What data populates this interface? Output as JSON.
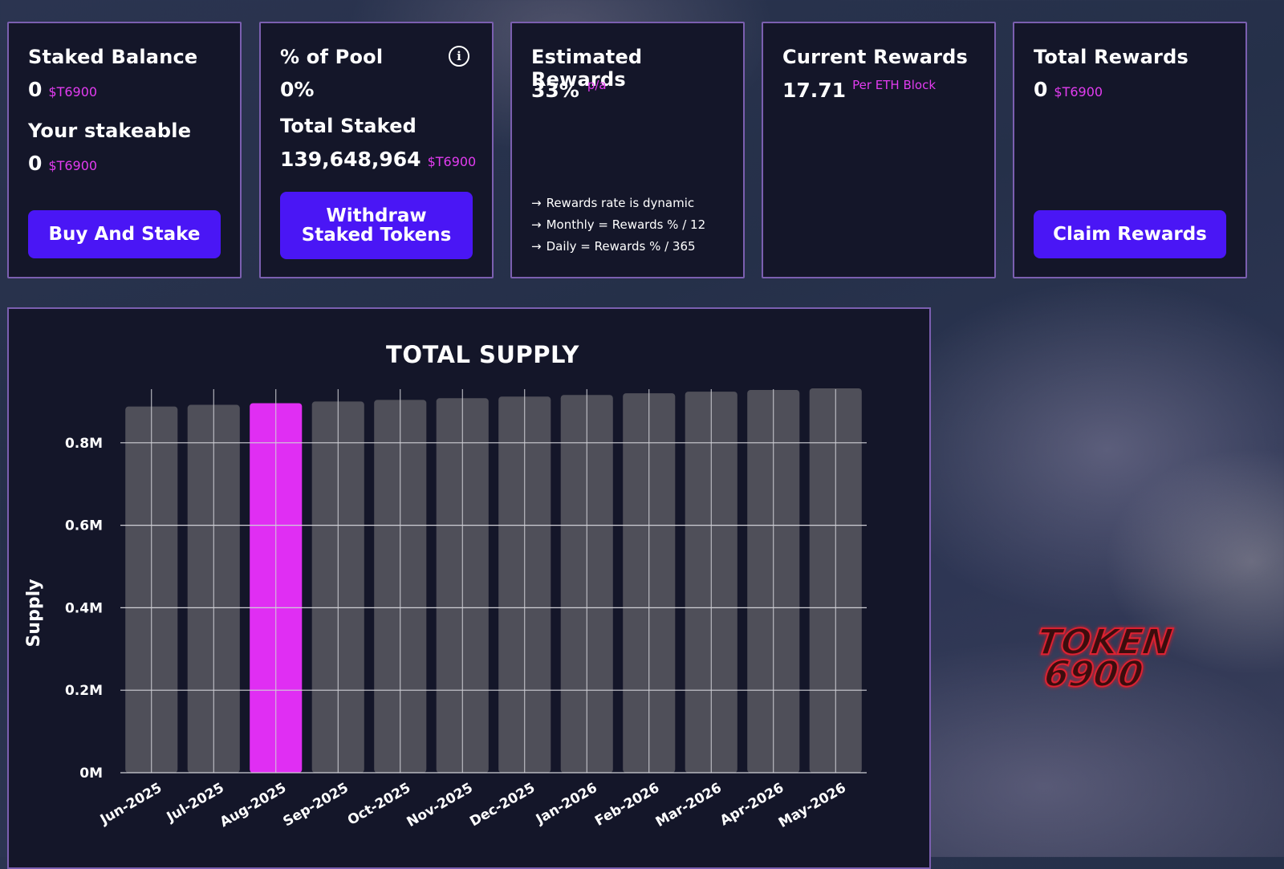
{
  "cards": {
    "staked_balance": {
      "title": "Staked Balance",
      "value": "0",
      "unit": "$T6900",
      "stakeable_label": "Your stakeable",
      "stakeable_value": "0",
      "stakeable_unit": "$T6900",
      "button": "Buy And Stake"
    },
    "pool": {
      "title": "% of Pool",
      "value": "0%",
      "total_label": "Total Staked",
      "total_value": "139,648,964",
      "total_unit": "$T6900",
      "button_line1": "Withdraw",
      "button_line2": "Staked Tokens",
      "info_icon": "info-icon"
    },
    "estimated": {
      "title": "Estimated Rewards",
      "value": "33%",
      "unit": "p/a",
      "notes": [
        "Rewards rate is dynamic",
        "Monthly = Rewards % / 12",
        "Daily = Rewards % / 365"
      ]
    },
    "current": {
      "title": "Current Rewards",
      "value": "17.71",
      "unit": "Per ETH Block"
    },
    "total": {
      "title": "Total Rewards",
      "value": "0",
      "unit": "$T6900",
      "button": "Claim Rewards"
    }
  },
  "logo": {
    "line1": "TOKEN",
    "line2": "6900"
  },
  "colors": {
    "accent": "#e23cf0",
    "button": "#4a16f5",
    "panel": "#141629",
    "border": "#7b5fb0",
    "bar": "#4f4f59",
    "highlight_bar": "#e02ef3",
    "logo": "#d8232f"
  },
  "chart_data": {
    "type": "bar",
    "title": "TOTAL SUPPLY",
    "xlabel": "",
    "ylabel": "Supply",
    "categories": [
      "Jun-2025",
      "Jul-2025",
      "Aug-2025",
      "Sep-2025",
      "Oct-2025",
      "Nov-2025",
      "Dec-2025",
      "Jan-2026",
      "Feb-2026",
      "Mar-2026",
      "Apr-2026",
      "May-2026"
    ],
    "values": [
      888000,
      892000,
      896000,
      900000,
      904000,
      908000,
      912000,
      916000,
      920000,
      924000,
      928000,
      932000
    ],
    "highlight_index": 2,
    "ylim": [
      0,
      930000
    ],
    "yticks": [
      0,
      200000,
      400000,
      600000,
      800000
    ],
    "ytick_labels": [
      "0M",
      "0.2M",
      "0.4M",
      "0.6M",
      "0.8M"
    ],
    "grid": true
  }
}
